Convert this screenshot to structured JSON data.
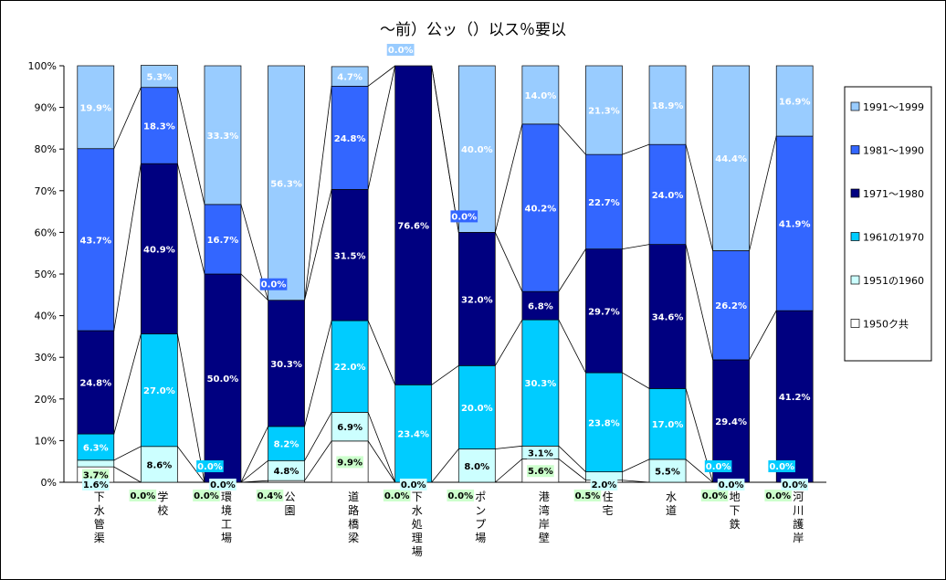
{
  "chart_data": {
    "type": "bar",
    "stacked_percent": true,
    "title": "～前）公ッ（）以ス％要以",
    "categories": [
      "下水管渠",
      "学校",
      "環境工場",
      "公園",
      "道路橋梁",
      "下水処理場",
      "ポンプ場",
      "港湾岸壁",
      "住宅",
      "水道",
      "地下鉄",
      "河川護岸"
    ],
    "series": [
      {
        "name": "1950ク共",
        "color": "#ffffff",
        "values": [
          3.7,
          0.0,
          0.0,
          0.4,
          9.9,
          0.0,
          0.0,
          5.6,
          0.5,
          0.0,
          0.0,
          0.0
        ],
        "labels": [
          "3.7%",
          "0.0%",
          "0.0%",
          "0.4%",
          "9.9%",
          "0.0%",
          "0.0%",
          "5.6%",
          "0.5%",
          "",
          "0.0%",
          "0.0%"
        ]
      },
      {
        "name": "1951の1960",
        "color": "#ccffff",
        "values": [
          1.6,
          8.6,
          0.0,
          4.8,
          6.9,
          0.0,
          8.0,
          3.1,
          2.0,
          5.5,
          0.0,
          0.0
        ],
        "labels": [
          "1.6%",
          "8.6%",
          "0.0%",
          "4.8%",
          "6.9%",
          "0.0%",
          "8.0%",
          "3.1%",
          "2.0%",
          "5.5%",
          "0.0%",
          "0.0%"
        ]
      },
      {
        "name": "1961の1970",
        "color": "#00ccff",
        "values": [
          6.3,
          27.0,
          0.0,
          8.2,
          22.0,
          23.4,
          20.0,
          30.3,
          23.8,
          17.0,
          0.0,
          0.0
        ],
        "labels": [
          "6.3%",
          "27.0%",
          "0.0%",
          "8.2%",
          "22.0%",
          "23.4%",
          "20.0%",
          "30.3%",
          "23.8%",
          "17.0%",
          "0.0%",
          "0.0%"
        ]
      },
      {
        "name": "1971～1980",
        "color": "#000080",
        "values": [
          24.8,
          40.9,
          50.0,
          30.3,
          31.5,
          76.6,
          32.0,
          6.8,
          29.7,
          34.6,
          29.4,
          41.2
        ],
        "labels": [
          "24.8%",
          "40.9%",
          "50.0%",
          "30.3%",
          "31.5%",
          "76.6%",
          "32.0%",
          "6.8%",
          "29.7%",
          "34.6%",
          "29.4%",
          "41.2%"
        ]
      },
      {
        "name": "1981～1990",
        "color": "#3366ff",
        "values": [
          43.7,
          18.3,
          16.7,
          0.0,
          24.8,
          0.0,
          0.0,
          40.2,
          22.7,
          24.0,
          26.2,
          41.9
        ],
        "labels": [
          "43.7%",
          "18.3%",
          "16.7%",
          "0.0%",
          "24.8%",
          "0.0%",
          "0.0%",
          "40.2%",
          "22.7%",
          "24.0%",
          "26.2%",
          "41.9%"
        ]
      },
      {
        "name": "1991～1999",
        "color": "#99ccff",
        "values": [
          19.9,
          5.3,
          33.3,
          56.3,
          4.7,
          0.0,
          40.0,
          14.0,
          21.3,
          18.9,
          44.4,
          16.9
        ],
        "labels": [
          "19.9%",
          "5.3%",
          "33.3%",
          "56.3%",
          "4.7%",
          "0.0%",
          "40.0%",
          "14.0%",
          "21.3%",
          "18.9%",
          "44.4%",
          "16.9%"
        ]
      }
    ],
    "y_ticks": [
      "0%",
      "10%",
      "20%",
      "30%",
      "40%",
      "50%",
      "60%",
      "70%",
      "80%",
      "90%",
      "100%"
    ],
    "ylim": [
      0,
      100
    ],
    "grid": false,
    "legend_position": "right",
    "legend_order": [
      "1991～1999",
      "1981～1990",
      "1971～1980",
      "1961の1970",
      "1951の1960",
      "1950ク共"
    ]
  }
}
